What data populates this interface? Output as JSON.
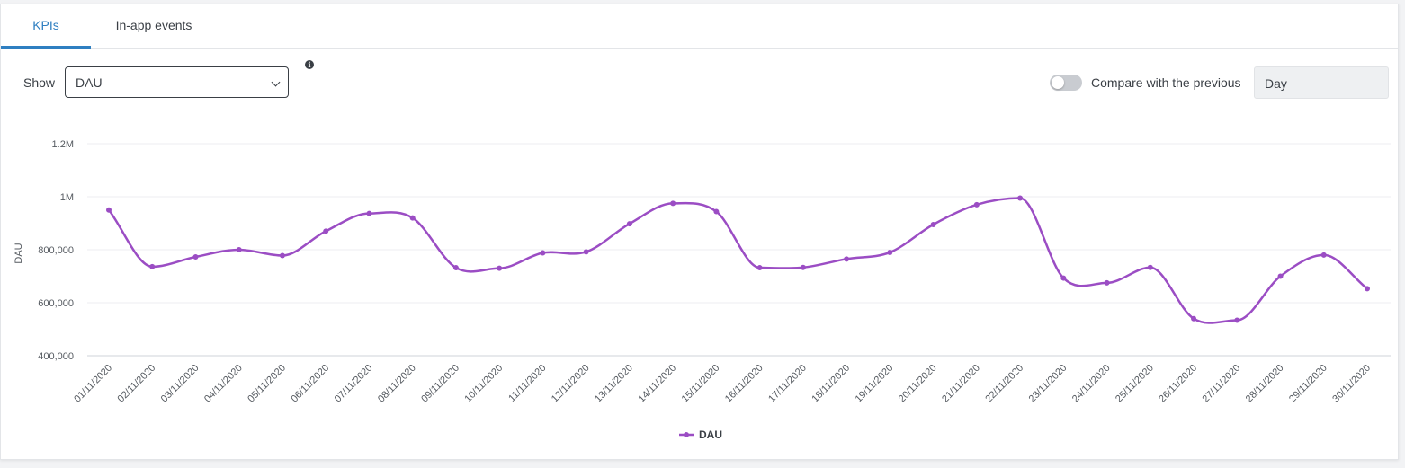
{
  "tabs": [
    {
      "label": "KPIs",
      "active": true
    },
    {
      "label": "In-app events",
      "active": false
    }
  ],
  "controls": {
    "show_label": "Show",
    "metric_select": "DAU",
    "compare_label": "Compare with the previous",
    "compare_enabled": false,
    "period_value": "Day"
  },
  "colors": {
    "accent": "#2f7fc1",
    "series": "#9b4dc4"
  },
  "chart_data": {
    "type": "line",
    "ylabel": "DAU",
    "ylim": [
      400000,
      1200000
    ],
    "y_ticks": [
      400000,
      600000,
      800000,
      1000000,
      1200000
    ],
    "y_tick_labels": [
      "400,000",
      "600,000",
      "800,000",
      "1M",
      "1.2M"
    ],
    "grid": "horizontal",
    "legend_position": "bottom-center",
    "x": [
      "01/11/2020",
      "02/11/2020",
      "03/11/2020",
      "04/11/2020",
      "05/11/2020",
      "06/11/2020",
      "07/11/2020",
      "08/11/2020",
      "09/11/2020",
      "10/11/2020",
      "11/11/2020",
      "12/11/2020",
      "13/11/2020",
      "14/11/2020",
      "15/11/2020",
      "16/11/2020",
      "17/11/2020",
      "18/11/2020",
      "19/11/2020",
      "20/11/2020",
      "21/11/2020",
      "22/11/2020",
      "23/11/2020",
      "24/11/2020",
      "25/11/2020",
      "26/11/2020",
      "27/11/2020",
      "28/11/2020",
      "29/11/2020",
      "30/11/2020"
    ],
    "series": [
      {
        "name": "DAU",
        "values": [
          950000,
          736000,
          773000,
          800000,
          778000,
          870000,
          937000,
          920000,
          732000,
          730000,
          788000,
          792000,
          898000,
          975000,
          944000,
          732000,
          733000,
          765000,
          790000,
          895000,
          970000,
          995000,
          693000,
          675000,
          733000,
          540000,
          534000,
          700000,
          780000,
          653000
        ]
      }
    ]
  }
}
